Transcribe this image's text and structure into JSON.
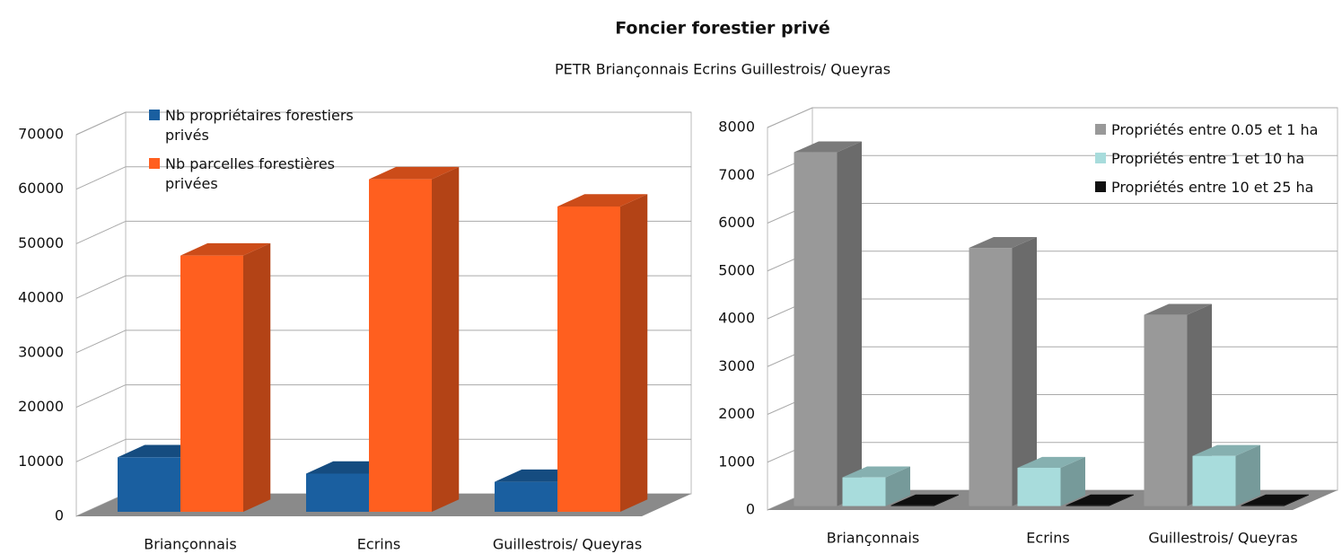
{
  "title": "Foncier forestier privé",
  "subtitle": "PETR Briançonnais Ecrins Guillestrois/ Queyras",
  "chart_data": [
    {
      "type": "bar3d",
      "categories": [
        "Briançonnais",
        "Ecrins",
        "Guillestrois/ Queyras"
      ],
      "series": [
        {
          "name": "Nb propriétaires forestiers privés",
          "color": "#1a5fa0",
          "values": [
            10000,
            7000,
            5500
          ]
        },
        {
          "name": "Nb parcelles forestières privées",
          "color": "#ff5f1f",
          "values": [
            47000,
            61000,
            56000
          ]
        }
      ],
      "ylim": [
        0,
        70000
      ],
      "yticks": [
        0,
        10000,
        20000,
        30000,
        40000,
        50000,
        60000,
        70000
      ],
      "grid": true,
      "legend": "top-left"
    },
    {
      "type": "bar3d",
      "categories": [
        "Briançonnais",
        "Ecrins",
        "Guillestrois/ Queyras"
      ],
      "series": [
        {
          "name": "Propriétés entre 0.05 et 1 ha",
          "color": "#999999",
          "values": [
            7400,
            5400,
            4000
          ]
        },
        {
          "name": "Propriétés entre 1 et 10 ha",
          "color": "#a8dcdc",
          "values": [
            600,
            800,
            1050
          ]
        },
        {
          "name": "Propriétés entre 10 et 25 ha",
          "color": "#111111",
          "values": [
            15,
            15,
            15
          ]
        }
      ],
      "ylim": [
        0,
        8000
      ],
      "yticks": [
        0,
        1000,
        2000,
        3000,
        4000,
        5000,
        6000,
        7000,
        8000
      ],
      "grid": true,
      "legend": "top-right"
    }
  ]
}
